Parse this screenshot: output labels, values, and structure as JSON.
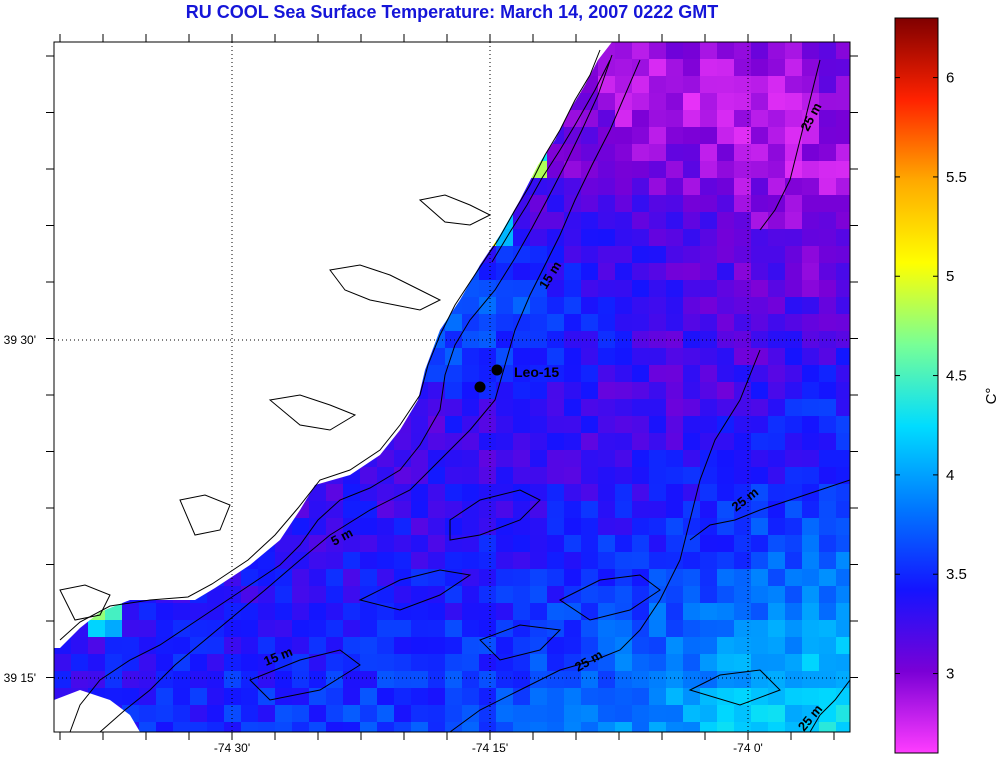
{
  "title": "RU COOL  Sea Surface Temperature:  March 14, 2007 0222 GMT",
  "map": {
    "x_ticks": [
      {
        "label": "-74 30'",
        "lon": -74.5
      },
      {
        "label": "-74 15'",
        "lon": -74.25
      },
      {
        "label": "-74 0'",
        "lon": -74.0
      }
    ],
    "y_ticks": [
      {
        "label": "39 30'",
        "lat": 39.5
      },
      {
        "label": "39 15'",
        "lat": 39.25
      }
    ],
    "contour_labels": [
      "25 m",
      "15 m",
      "5 m",
      "25 m",
      "25 m",
      "15 m",
      "25 m"
    ],
    "station": {
      "label": "Leo-15",
      "points": 2
    },
    "grid": "dotted"
  },
  "colorbar": {
    "unit": "C°",
    "min": 2.6,
    "max": 6.3,
    "ticks": [
      {
        "label": "6",
        "value": 6.0
      },
      {
        "label": "5.5",
        "value": 5.5
      },
      {
        "label": "5",
        "value": 5.0
      },
      {
        "label": "4.5",
        "value": 4.5
      },
      {
        "label": "4",
        "value": 4.0
      },
      {
        "label": "3.5",
        "value": 3.5
      },
      {
        "label": "3",
        "value": 3.0
      }
    ],
    "stops": [
      "#ff3cff",
      "#7a00d6",
      "#1414ff",
      "#0078ff",
      "#00dcff",
      "#78ff96",
      "#ffff00",
      "#ffaa00",
      "#ff2200",
      "#800000"
    ]
  }
}
